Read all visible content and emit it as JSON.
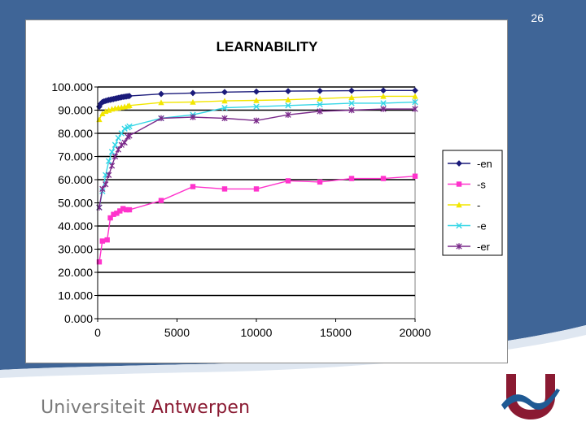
{
  "slide": {
    "number": "26"
  },
  "footer": {
    "university_part1": "Universiteit",
    "university_part2": "Antwerpen"
  },
  "colors": {
    "background_blue": "#3f6597",
    "footer_accent": "#8a1a32",
    "logo_blue": "#1f5a94"
  },
  "chart_data": {
    "type": "line",
    "title": "LEARNABILITY",
    "xlabel": "",
    "ylabel": "",
    "xlim": [
      0,
      20000
    ],
    "ylim": [
      0,
      100
    ],
    "x_ticks": [
      "0",
      "5000",
      "10000",
      "15000",
      "20000"
    ],
    "y_ticks": [
      "0.000",
      "10.000",
      "20.000",
      "30.000",
      "40.000",
      "50.000",
      "60.000",
      "70.000",
      "80.000",
      "90.000",
      "100.000"
    ],
    "grid": "horizontal",
    "legend_position": "right",
    "series": [
      {
        "name": "-en",
        "color": "#1a1a7a",
        "marker": "diamond",
        "x": [
          100,
          200,
          300,
          400,
          500,
          600,
          700,
          800,
          900,
          1000,
          1100,
          1200,
          1300,
          1400,
          1500,
          1600,
          1700,
          1800,
          1900,
          2000,
          4000,
          6000,
          8000,
          10000,
          12000,
          14000,
          16000,
          18000,
          20000
        ],
        "y": [
          91.5,
          92.8,
          93.5,
          93.8,
          94,
          94.2,
          94.4,
          94.5,
          94.7,
          94.8,
          95,
          95.1,
          95.3,
          95.4,
          95.6,
          95.7,
          95.8,
          95.9,
          96,
          96.1,
          97,
          97.4,
          97.8,
          98,
          98.2,
          98.3,
          98.4,
          98.5,
          98.5
        ]
      },
      {
        "name": "-s",
        "color": "#ff33cc",
        "marker": "square",
        "x": [
          100,
          300,
          600,
          800,
          1000,
          1200,
          1400,
          1600,
          1800,
          2000,
          4000,
          6000,
          8000,
          10000,
          12000,
          14000,
          16000,
          18000,
          20000
        ],
        "y": [
          24.5,
          33.5,
          34,
          43.5,
          45,
          45.5,
          46.5,
          47.5,
          47,
          47,
          51,
          57,
          56,
          56,
          59.5,
          59,
          60.5,
          60.5,
          61.5
        ]
      },
      {
        "name": "-",
        "color": "#f2e600",
        "marker": "triangle",
        "x": [
          100,
          300,
          500,
          700,
          900,
          1100,
          1300,
          1500,
          1700,
          1900,
          2000,
          4000,
          6000,
          8000,
          10000,
          12000,
          14000,
          16000,
          18000,
          20000
        ],
        "y": [
          86,
          88.5,
          89.5,
          90,
          90.5,
          90.8,
          91,
          91.2,
          91.5,
          91.8,
          92,
          93.3,
          93.5,
          94,
          94.2,
          94.5,
          95,
          95.5,
          96,
          96
        ]
      },
      {
        "name": "-e",
        "color": "#33d6e6",
        "marker": "x",
        "x": [
          100,
          300,
          500,
          700,
          900,
          1100,
          1300,
          1500,
          1700,
          1900,
          2000,
          4000,
          6000,
          8000,
          10000,
          12000,
          14000,
          16000,
          18000,
          20000
        ],
        "y": [
          48,
          55,
          62,
          68,
          72,
          75,
          78,
          80,
          82,
          82.5,
          83,
          86.5,
          88,
          91,
          91.5,
          92,
          92.5,
          93,
          93,
          93.5
        ]
      },
      {
        "name": "-er",
        "color": "#7a2a8a",
        "marker": "star",
        "x": [
          100,
          300,
          500,
          700,
          900,
          1100,
          1300,
          1500,
          1700,
          1900,
          2000,
          4000,
          6000,
          8000,
          10000,
          12000,
          14000,
          16000,
          18000,
          20000
        ],
        "y": [
          48,
          56,
          58,
          62,
          66,
          70,
          73,
          75,
          76,
          78.5,
          79,
          86.5,
          87,
          86.5,
          85.5,
          88,
          89.5,
          90,
          90.5,
          90.5
        ]
      }
    ]
  }
}
